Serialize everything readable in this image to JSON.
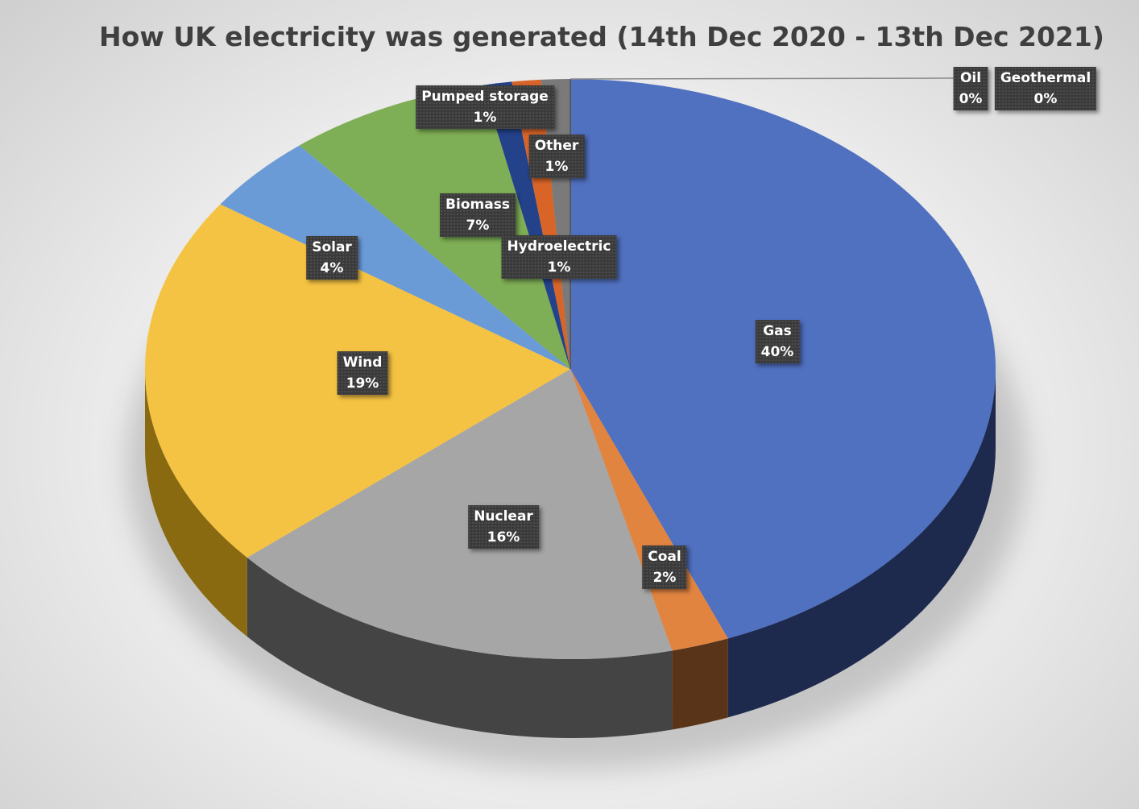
{
  "chart_data": {
    "type": "pie",
    "title": "How UK electricity was generated (14th Dec 2020 - 13th Dec 2021)",
    "slices": [
      {
        "name": "Gas",
        "value": 40,
        "label": "40%",
        "color": "#5070c0",
        "side": "#1e2a4d"
      },
      {
        "name": "Coal",
        "value": 2,
        "label": "2%",
        "color": "#e08440",
        "side": "#5a3418"
      },
      {
        "name": "Nuclear",
        "value": 16,
        "label": "16%",
        "color": "#a6a6a6",
        "side": "#444444"
      },
      {
        "name": "Wind",
        "value": 19,
        "label": "19%",
        "color": "#f5c343",
        "side": "#8a6a10"
      },
      {
        "name": "Solar",
        "value": 4,
        "label": "4%",
        "color": "#6b9bd6",
        "side": "#2c4a70"
      },
      {
        "name": "Biomass",
        "value": 7,
        "label": "7%",
        "color": "#7eae55",
        "side": "#3c5a24"
      },
      {
        "name": "Pumped storage",
        "value": 1,
        "label": "1%",
        "color": "#24428a",
        "side": "#101e40"
      },
      {
        "name": "Other",
        "value": 1,
        "label": "1%",
        "color": "#d86428",
        "side": "#5c2a10"
      },
      {
        "name": "Hydroelectric",
        "value": 1,
        "label": "1%",
        "color": "#7a7a7a",
        "side": "#333333"
      },
      {
        "name": "Oil",
        "value": 0,
        "label": "0%",
        "color": "#4f6fb0",
        "side": "#1e2a4d"
      },
      {
        "name": "Geothermal",
        "value": 0,
        "label": "0%",
        "color": "#5a5a5a",
        "side": "#2a2a2a"
      }
    ],
    "legend": "none"
  }
}
